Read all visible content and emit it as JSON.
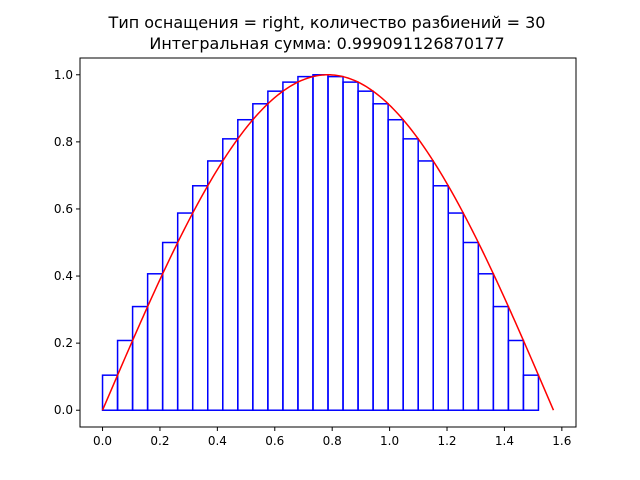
{
  "chart_data": {
    "type": "line",
    "title": "Тип оснащения = right, количество разбиений = 30",
    "subtitle": "Интегральная сумма: 0.999091126870177",
    "xlabel": "",
    "ylabel": "",
    "xlim": [
      -0.0785,
      1.6493
    ],
    "ylim": [
      -0.05,
      1.05
    ],
    "x_ticks": [
      0.0,
      0.2,
      0.4,
      0.6,
      0.8,
      1.0,
      1.2,
      1.4,
      1.6
    ],
    "x_tick_labels": [
      "0.0",
      "0.2",
      "0.4",
      "0.6",
      "0.8",
      "1.0",
      "1.2",
      "1.4",
      "1.6"
    ],
    "y_ticks": [
      0.0,
      0.2,
      0.4,
      0.6,
      0.8,
      1.0
    ],
    "y_tick_labels": [
      "0.0",
      "0.2",
      "0.4",
      "0.6",
      "0.8",
      "1.0"
    ],
    "grid": false,
    "legend": "none",
    "series": [
      {
        "kind": "curve",
        "function": "sin(2x)",
        "x_range": [
          0,
          1.5708
        ],
        "color": "#ff0000"
      },
      {
        "kind": "rectangles",
        "color": "#0000ff",
        "partitions": 30,
        "x_start": 0,
        "x_end": 1.5708,
        "heights": [
          0.1045,
          0.2079,
          0.309,
          0.4067,
          0.5,
          0.5878,
          0.6691,
          0.7431,
          0.809,
          0.866,
          0.9135,
          0.9511,
          0.9781,
          0.9945,
          1.0,
          0.9945,
          0.9781,
          0.9511,
          0.9135,
          0.866,
          0.809,
          0.7431,
          0.6691,
          0.5878,
          0.5,
          0.4067,
          0.309,
          0.2079,
          0.1045,
          0.0
        ]
      }
    ]
  }
}
